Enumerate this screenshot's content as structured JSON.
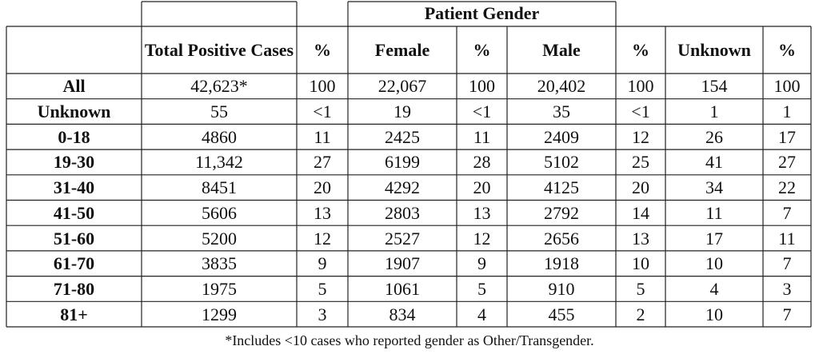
{
  "table": {
    "group_header": "Patient Gender",
    "columns": [
      "",
      "Total Positive Cases",
      "%",
      "Female",
      "%",
      "Male",
      "%",
      "Unknown",
      "%"
    ],
    "rows": [
      [
        "All",
        "42,623*",
        "100",
        "22,067",
        "100",
        "20,402",
        "100",
        "154",
        "100"
      ],
      [
        "Unknown",
        "55",
        "<1",
        "19",
        "<1",
        "35",
        "<1",
        "1",
        "1"
      ],
      [
        "0-18",
        "4860",
        "11",
        "2425",
        "11",
        "2409",
        "12",
        "26",
        "17"
      ],
      [
        "19-30",
        "11,342",
        "27",
        "6199",
        "28",
        "5102",
        "25",
        "41",
        "27"
      ],
      [
        "31-40",
        "8451",
        "20",
        "4292",
        "20",
        "4125",
        "20",
        "34",
        "22"
      ],
      [
        "41-50",
        "5606",
        "13",
        "2803",
        "13",
        "2792",
        "14",
        "11",
        "7"
      ],
      [
        "51-60",
        "5200",
        "12",
        "2527",
        "12",
        "2656",
        "13",
        "17",
        "11"
      ],
      [
        "61-70",
        "3835",
        "9",
        "1907",
        "9",
        "1918",
        "10",
        "10",
        "7"
      ],
      [
        "71-80",
        "1975",
        "5",
        "1061",
        "5",
        "910",
        "5",
        "4",
        "3"
      ],
      [
        "81+",
        "1299",
        "3",
        "834",
        "4",
        "455",
        "2",
        "10",
        "7"
      ]
    ]
  },
  "footnote": "*Includes <10 cases who reported gender as Other/Transgender."
}
